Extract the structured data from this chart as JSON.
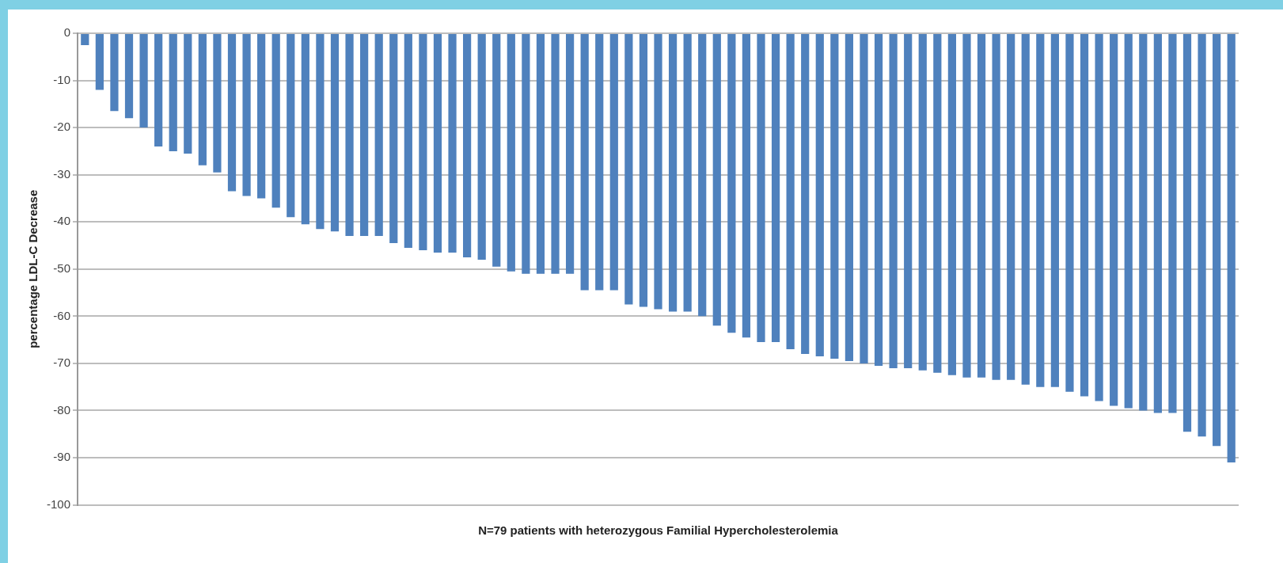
{
  "chart_data": {
    "type": "bar",
    "xlabel": "N=79 patients with heterozygous Familial Hypercholesterolemia",
    "ylabel": "percentage LDL-C Decrease",
    "categories": [
      null,
      null,
      null,
      null,
      null,
      null,
      null,
      null,
      null,
      null,
      null,
      null,
      null,
      null,
      null,
      null,
      null,
      null,
      null,
      null,
      null,
      null,
      null,
      null,
      null,
      null,
      null,
      null,
      null,
      null,
      null,
      null,
      null,
      null,
      null,
      null,
      null,
      null,
      null,
      null,
      null,
      null,
      null,
      null,
      null,
      null,
      null,
      null,
      null,
      null,
      null,
      null,
      null,
      null,
      null,
      null,
      null,
      null,
      null,
      null,
      null,
      null,
      null,
      null,
      null,
      null,
      null,
      null,
      null,
      null,
      null,
      null,
      null,
      null,
      null,
      null,
      null,
      null,
      null
    ],
    "values": [
      -2.5,
      -12,
      -16.5,
      -18,
      -20,
      -24,
      -25,
      -25.5,
      -28,
      -29.5,
      -33.5,
      -34.5,
      -35,
      -37,
      -39,
      -40.5,
      -41.5,
      -42,
      -43,
      -43,
      -43,
      -44.5,
      -45.5,
      -46,
      -46.5,
      -46.5,
      -47.5,
      -48,
      -49.5,
      -50.5,
      -51,
      -51,
      -51,
      -51,
      -54.5,
      -54.5,
      -54.5,
      -57.5,
      -58,
      -58.5,
      -59,
      -59,
      -60,
      -62,
      -63.5,
      -64.5,
      -65.5,
      -65.5,
      -67,
      -68,
      -68.5,
      -69,
      -69.5,
      -70,
      -70.5,
      -71,
      -71,
      -71.5,
      -72,
      -72.5,
      -73,
      -73,
      -73.5,
      -73.5,
      -74.5,
      -75,
      -75,
      -76,
      -77,
      -78,
      -79,
      -79.5,
      -80,
      -80.5,
      -80.5,
      -84.5,
      -85.5,
      -87.5,
      -91
    ],
    "color": "#4f81bd",
    "ylim": [
      -100,
      0
    ],
    "yticks": [
      0,
      -10,
      -20,
      -30,
      -40,
      -50,
      -60,
      -70,
      -80,
      -90,
      -100
    ],
    "grid": "y"
  }
}
